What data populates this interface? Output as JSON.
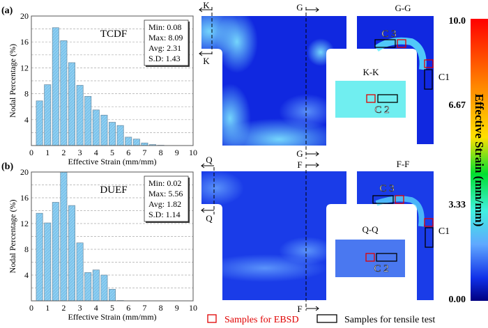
{
  "panels": [
    {
      "label": "(a)",
      "process": "TCDF",
      "stats": [
        "Min: 0.08",
        "Max: 8.09",
        "Avg: 2.31",
        "S.D: 1.43"
      ],
      "section_lines": {
        "left": "K",
        "vertical": "G"
      },
      "section_views": [
        "G-G",
        "K-K"
      ]
    },
    {
      "label": "(b)",
      "process": "DUEF",
      "stats": [
        "Min: 0.02",
        "Max: 5.56",
        "Avg: 1.82",
        "S.D: 1.14"
      ],
      "section_lines": {
        "left": "Q",
        "vertical": "F"
      },
      "section_views": [
        "F-F",
        "Q-Q"
      ]
    }
  ],
  "sample_labels": {
    "c1": "C1",
    "c2": "C 2",
    "c3": "C 3"
  },
  "colorbar": {
    "title": "Effective Strain (mm/mm)",
    "ticks": [
      "10.0",
      "6.67",
      "3.33",
      "0.00"
    ],
    "colors": [
      "#ff0000",
      "#ff8c00",
      "#ffe000",
      "#00e030",
      "#40f0e0",
      "#60a8ff",
      "#1030e8",
      "#000080"
    ]
  },
  "legend": {
    "ebsd": "Samples for EBSD",
    "tensile": "Samples for tensile test",
    "ebsd_color": "#e00000",
    "tensile_color": "#000000"
  },
  "chart_data": [
    {
      "type": "bar",
      "title": "TCDF",
      "xlabel": "Effective Strain (mm/mm)",
      "ylabel": "Nodal Percentage (%)",
      "xlim": [
        0,
        10
      ],
      "ylim": [
        0,
        20
      ],
      "xticks": [
        0,
        1,
        2,
        3,
        4,
        5,
        6,
        7,
        8,
        9,
        10
      ],
      "yticks": [
        4,
        8,
        12,
        16,
        20
      ],
      "grid": true,
      "x": [
        0.5,
        1,
        1.5,
        2,
        2.5,
        3,
        3.5,
        4,
        4.5,
        5,
        5.5,
        6,
        6.5,
        7,
        7.5,
        8
      ],
      "values": [
        6.9,
        9.4,
        18.2,
        16.2,
        12.8,
        9.3,
        7.6,
        5.5,
        4.7,
        3.6,
        3.1,
        1.3,
        1.0,
        0.4,
        0.15,
        0.05
      ],
      "color": "#7cc4ec"
    },
    {
      "type": "bar",
      "title": "DUEF",
      "xlabel": "Effective Strain (mm/mm)",
      "ylabel": "Nodal Percentage (%)",
      "xlim": [
        0,
        10
      ],
      "ylim": [
        0,
        20
      ],
      "xticks": [
        0,
        1,
        2,
        3,
        4,
        5,
        6,
        7,
        8,
        9,
        10
      ],
      "yticks": [
        4,
        8,
        12,
        16,
        20
      ],
      "grid": true,
      "x": [
        0.5,
        1,
        1.5,
        2,
        2.5,
        3,
        3.5,
        4,
        4.5,
        5,
        5.5
      ],
      "values": [
        13.6,
        12.1,
        15.3,
        20.0,
        14.8,
        9.0,
        4.4,
        4.8,
        4.0,
        1.8,
        0.05
      ],
      "color": "#7cc4ec"
    }
  ]
}
